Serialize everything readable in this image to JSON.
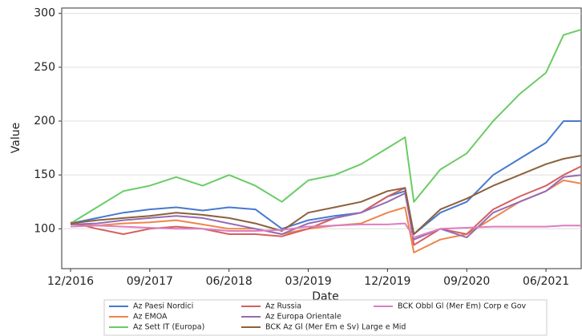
{
  "chart_data": {
    "type": "line",
    "x_label": "Date",
    "y_label": "Value",
    "x": [
      "12/2016",
      "03/2017",
      "06/2017",
      "09/2017",
      "12/2017",
      "03/2018",
      "06/2018",
      "09/2018",
      "12/2018",
      "03/2019",
      "06/2019",
      "09/2019",
      "12/2019",
      "02/2020",
      "03/2020",
      "06/2020",
      "09/2020",
      "12/2020",
      "03/2021",
      "06/2021",
      "08/2021",
      "10/2021"
    ],
    "xlim": [
      "11/2016",
      "10/2021"
    ],
    "xticks": [
      "12/2016",
      "09/2017",
      "06/2018",
      "03/2019",
      "12/2019",
      "09/2020",
      "06/2021"
    ],
    "ylim": [
      63,
      305
    ],
    "yticks": [
      100,
      150,
      200,
      250,
      300
    ],
    "grid": true,
    "series": [
      {
        "name": "Az Paesi Nordici",
        "color": "#4878d0",
        "values": [
          105,
          110,
          115,
          118,
          120,
          117,
          120,
          118,
          100,
          108,
          112,
          115,
          130,
          135,
          95,
          115,
          125,
          150,
          165,
          180,
          200,
          200
        ]
      },
      {
        "name": "Az EMOA",
        "color": "#ee854a",
        "values": [
          104,
          103,
          105,
          106,
          108,
          104,
          100,
          100,
          95,
          100,
          103,
          105,
          115,
          120,
          78,
          90,
          95,
          110,
          125,
          135,
          145,
          142
        ]
      },
      {
        "name": "Az Sett IT (Europa)",
        "color": "#6acc64",
        "values": [
          105,
          120,
          135,
          140,
          148,
          140,
          150,
          140,
          125,
          145,
          150,
          160,
          175,
          185,
          125,
          155,
          170,
          200,
          225,
          245,
          280,
          285
        ]
      },
      {
        "name": "Az Russia",
        "color": "#d65f5f",
        "values": [
          106,
          100,
          95,
          100,
          102,
          100,
          95,
          95,
          93,
          100,
          110,
          115,
          130,
          138,
          85,
          100,
          95,
          118,
          130,
          140,
          150,
          158
        ]
      },
      {
        "name": "Az Europa Orientale",
        "color": "#956cb4",
        "values": [
          104,
          105,
          108,
          110,
          112,
          110,
          105,
          100,
          95,
          105,
          110,
          115,
          125,
          133,
          90,
          100,
          92,
          115,
          125,
          135,
          148,
          150
        ]
      },
      {
        "name": "BCK Az Gl (Mer Em e Sv) Large e Mid",
        "color": "#8c613c",
        "values": [
          105,
          108,
          110,
          112,
          115,
          113,
          110,
          105,
          98,
          115,
          120,
          125,
          135,
          138,
          95,
          118,
          128,
          140,
          150,
          160,
          165,
          168
        ]
      },
      {
        "name": "BCK Obbl Gl (Mer Em) Corp e Gov",
        "color": "#dc7ec0",
        "values": [
          102,
          103,
          102,
          101,
          100,
          100,
          98,
          98,
          99,
          102,
          103,
          104,
          104,
          105,
          92,
          100,
          101,
          102,
          102,
          102,
          103,
          103
        ]
      }
    ]
  }
}
